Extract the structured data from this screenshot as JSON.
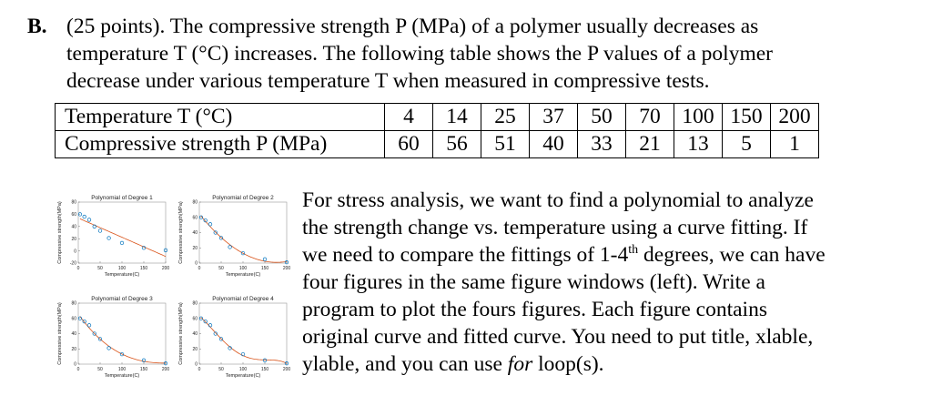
{
  "problem": {
    "label": "B.",
    "lines": [
      "(25 points). The compressive strength P (MPa) of a polymer usually decreases as",
      "temperature T (°C) increases. The following table shows the P values of a polymer",
      "decrease under various temperature T when measured in compressive tests."
    ]
  },
  "table": {
    "row1_label": "Temperature T (°C)",
    "row2_label": "Compressive strength P (MPa)",
    "temperature": [
      "4",
      "14",
      "25",
      "37",
      "50",
      "70",
      "100",
      "150",
      "200"
    ],
    "strength": [
      "60",
      "56",
      "51",
      "40",
      "33",
      "21",
      "13",
      "5",
      "1"
    ]
  },
  "paragraph": {
    "l1": "For stress analysis, we want to find a polynomial to analyze",
    "l2": "the strength change vs. temperature using a curve fitting. If",
    "l3a": "we need to compare the fittings of 1-4",
    "l3sup": "th",
    "l3b": " degrees, we can have",
    "l4": "four figures in the same figure windows (left). Write a",
    "l5": "program to plot the fours figures. Each figure contains",
    "l6": "original curve and fitted curve. You need to put title, xlable,",
    "l7a": "ylable, and you can use ",
    "l7i": "for",
    "l7b": " loop(s)."
  },
  "chart_data": [
    {
      "type": "scatter",
      "title": "Polynomial of Degree 1",
      "xlabel": "Temperature(C)",
      "ylabel": "Compressive strength(MPa)",
      "x": [
        4,
        14,
        25,
        37,
        50,
        70,
        100,
        150,
        200
      ],
      "y": [
        60,
        56,
        51,
        40,
        33,
        21,
        13,
        5,
        1
      ],
      "degree": 1,
      "xlim": [
        0,
        200
      ],
      "ylim": [
        -20,
        80
      ],
      "xticks": [
        0,
        50,
        100,
        150,
        200
      ],
      "yticks": [
        -20,
        0,
        20,
        40,
        60,
        80
      ],
      "point_color": "#0072bd",
      "fit_color": "#d95319"
    },
    {
      "type": "scatter",
      "title": "Polynomial of Degree 2",
      "xlabel": "Temperature(C)",
      "ylabel": "Compressive strength(MPa)",
      "x": [
        4,
        14,
        25,
        37,
        50,
        70,
        100,
        150,
        200
      ],
      "y": [
        60,
        56,
        51,
        40,
        33,
        21,
        13,
        5,
        1
      ],
      "degree": 2,
      "xlim": [
        0,
        200
      ],
      "ylim": [
        0,
        80
      ],
      "xticks": [
        0,
        50,
        100,
        150,
        200
      ],
      "yticks": [
        0,
        20,
        40,
        60,
        80
      ],
      "point_color": "#0072bd",
      "fit_color": "#d95319"
    },
    {
      "type": "scatter",
      "title": "Polynomial of Degree 3",
      "xlabel": "Temperature(C)",
      "ylabel": "Compressive strength(MPa)",
      "x": [
        4,
        14,
        25,
        37,
        50,
        70,
        100,
        150,
        200
      ],
      "y": [
        60,
        56,
        51,
        40,
        33,
        21,
        13,
        5,
        1
      ],
      "degree": 3,
      "xlim": [
        0,
        200
      ],
      "ylim": [
        0,
        80
      ],
      "xticks": [
        0,
        50,
        100,
        150,
        200
      ],
      "yticks": [
        0,
        20,
        40,
        60,
        80
      ],
      "point_color": "#0072bd",
      "fit_color": "#d95319"
    },
    {
      "type": "scatter",
      "title": "Polynomial of Degree 4",
      "xlabel": "Temperature(C)",
      "ylabel": "Compressive strength(MPa)",
      "x": [
        4,
        14,
        25,
        37,
        50,
        70,
        100,
        150,
        200
      ],
      "y": [
        60,
        56,
        51,
        40,
        33,
        21,
        13,
        5,
        1
      ],
      "degree": 4,
      "xlim": [
        0,
        200
      ],
      "ylim": [
        0,
        80
      ],
      "xticks": [
        0,
        50,
        100,
        150,
        200
      ],
      "yticks": [
        0,
        20,
        40,
        60,
        80
      ],
      "point_color": "#0072bd",
      "fit_color": "#d95319"
    }
  ]
}
